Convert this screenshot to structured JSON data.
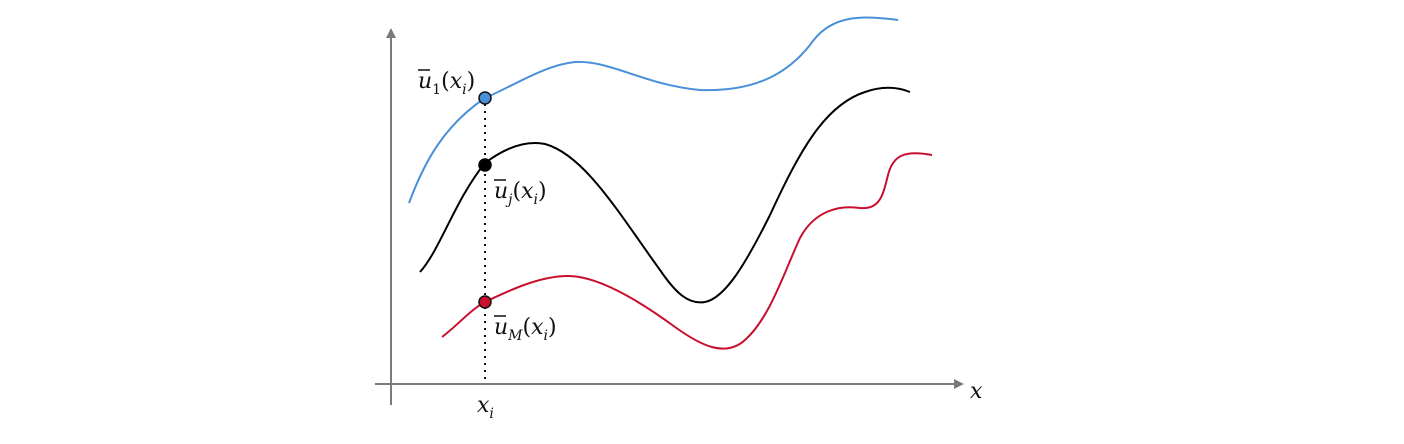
{
  "colors": {
    "axis": "#7a7a7a",
    "curve_top": "#4a90d9",
    "curve_middle": "#000000",
    "curve_bottom": "#c8102e",
    "dotted_line": "#111111"
  },
  "axes": {
    "x_label": "x",
    "x_tick_label": "x",
    "x_tick_sub": "i"
  },
  "labels": {
    "top": {
      "base": "u",
      "sub": "1",
      "arg": "x",
      "arg_sub": "i"
    },
    "middle": {
      "base": "u",
      "sub": "j",
      "arg": "x",
      "arg_sub": "i"
    },
    "bottom": {
      "base": "u",
      "sub": "M",
      "arg": "x",
      "arg_sub": "i"
    }
  }
}
